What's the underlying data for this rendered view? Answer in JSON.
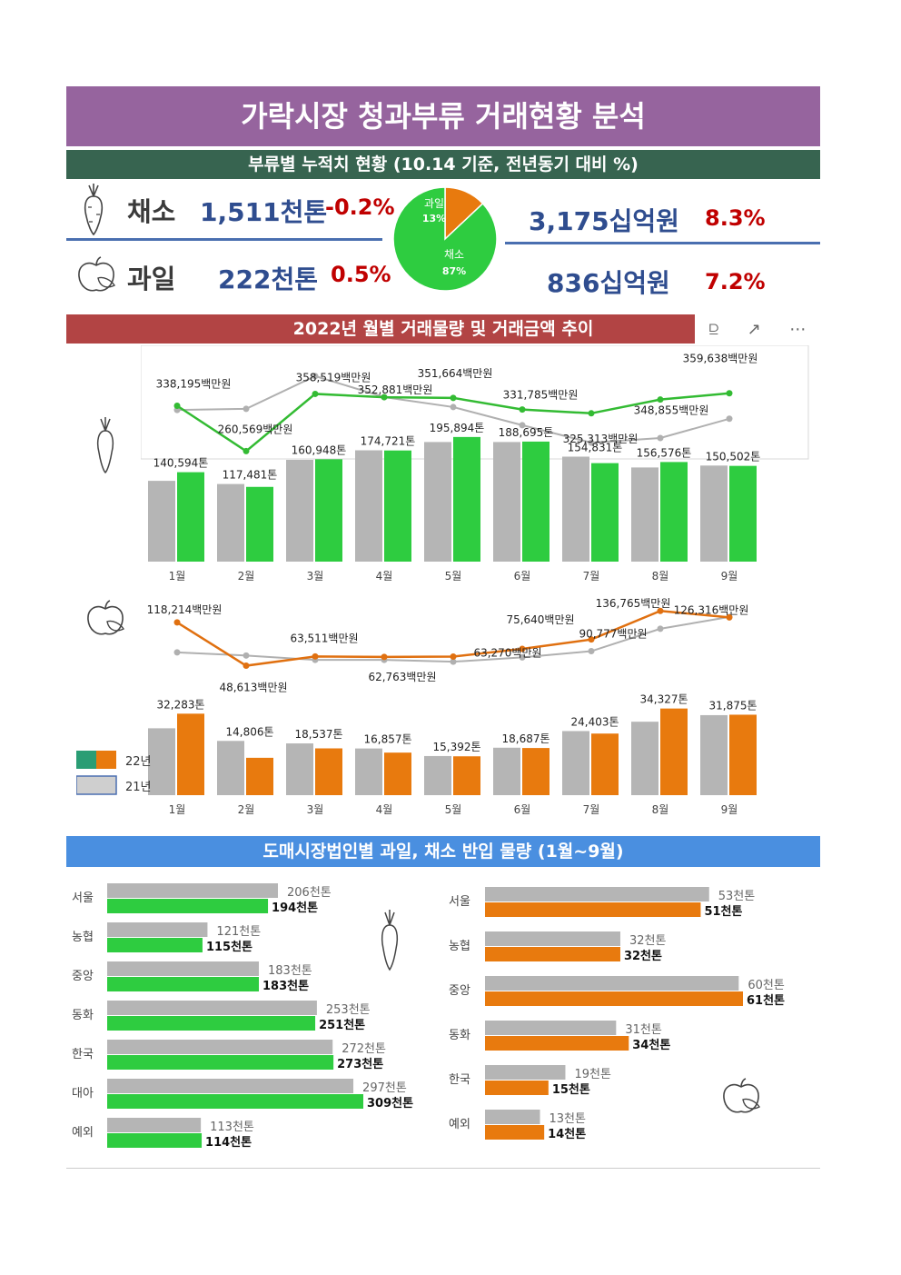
{
  "title": "가락시장 청과부류 거래현황 분석",
  "section1_title": "부류별 누적치 현황 (10.14 기준, 전년동기 대비 %)",
  "section2_title": "2022년 월별 거래물량 및 거래금액  추이",
  "section3_title": "도매시장법인별 과일, 채소 반입 물량 (1월~9월)",
  "toolbar": {
    "filter_icon": "filter-icon",
    "focus_icon": "focus-mode-icon",
    "more_icon": "more-options-icon"
  },
  "kpi": {
    "veg_label": "채소",
    "veg_volume": "1,511천톤",
    "veg_volume_pct": "-0.2%",
    "veg_amount": "3,175십억원",
    "veg_amount_pct": "8.3%",
    "fruit_label": "과일",
    "fruit_volume": "222천톤",
    "fruit_volume_pct": "0.5%",
    "fruit_amount": "836십억원",
    "fruit_amount_pct": "7.2%"
  },
  "colors": {
    "veg": "#2ecc40",
    "fruit": "#e87a0e",
    "prev": "#b8b8b8",
    "veg_line": "#33bb33",
    "fruit_line": "#e07010"
  },
  "chart_data": [
    {
      "type": "pie",
      "categories": [
        "과일",
        "채소"
      ],
      "values": [
        13,
        87
      ],
      "labels": [
        "13%",
        "87%"
      ]
    },
    {
      "type": "line",
      "categories": [
        "1월",
        "2월",
        "3월",
        "4월",
        "5월",
        "6월",
        "7월",
        "8월",
        "9월"
      ],
      "series": [
        {
          "name": "22년",
          "values": [
            338195,
            260569,
            358519,
            352881,
            351664,
            331785,
            325313,
            348855,
            359638
          ]
        },
        {
          "name": "21년",
          "values": [
            331000,
            333000,
            389000,
            353000,
            336000,
            305000,
            275000,
            283000,
            316000
          ]
        }
      ],
      "data_labels": [
        "338,195백만원",
        "260,569백만원",
        "358,519백만원",
        "352,881백만원",
        "351,664백만원",
        "331,785백만원",
        "325,313백만원",
        "348,855백만원",
        "359,638백만원"
      ]
    },
    {
      "type": "bar",
      "categories": [
        "1월",
        "2월",
        "3월",
        "4월",
        "5월",
        "6월",
        "7월",
        "8월",
        "9월"
      ],
      "series": [
        {
          "name": "21년",
          "values": [
            127000,
            122000,
            160000,
            175000,
            188000,
            188000,
            165000,
            148000,
            151000
          ]
        },
        {
          "name": "22년",
          "values": [
            140594,
            117481,
            160948,
            174721,
            195894,
            188695,
            154831,
            156576,
            150502
          ]
        }
      ],
      "data_labels": [
        "140,594톤",
        "117,481톤",
        "160,948톤",
        "174,721톤",
        "195,894톤",
        "188,695톤",
        "154,831톤",
        "156,576톤",
        "150,502톤"
      ]
    },
    {
      "type": "line",
      "categories": [
        "1월",
        "2월",
        "3월",
        "4월",
        "5월",
        "6월",
        "7월",
        "8월",
        "9월"
      ],
      "series": [
        {
          "name": "22년",
          "values": [
            118214,
            48613,
            63511,
            62763,
            63270,
            75640,
            90777,
            136765,
            126316
          ]
        },
        {
          "name": "21년",
          "values": [
            70000,
            65000,
            58000,
            58000,
            55000,
            62000,
            72000,
            108000,
            127000
          ]
        }
      ],
      "data_labels": [
        "118,214백만원",
        "48,613백만원",
        "63,511백만원",
        "62,763백만원",
        "63,270백만원",
        "75,640백만원",
        "90,777백만원",
        "136,765백만원",
        "126,316백만원"
      ]
    },
    {
      "type": "bar",
      "categories": [
        "1월",
        "2월",
        "3월",
        "4월",
        "5월",
        "6월",
        "7월",
        "8월",
        "9월"
      ],
      "series": [
        {
          "name": "21년",
          "values": [
            26500,
            21500,
            20500,
            18500,
            15500,
            18800,
            25400,
            29100,
            31700
          ]
        },
        {
          "name": "22년",
          "values": [
            32283,
            14806,
            18537,
            16857,
            15392,
            18687,
            24403,
            34327,
            31875
          ]
        }
      ],
      "data_labels": [
        "32,283톤",
        "14,806톤",
        "18,537톤",
        "16,857톤",
        "15,392톤",
        "18,687톤",
        "24,403톤",
        "34,327톤",
        "31,875톤"
      ],
      "legend": [
        "22년",
        "21년"
      ]
    },
    {
      "type": "bar",
      "orientation": "horizontal",
      "categories": [
        "서울",
        "농협",
        "중앙",
        "동화",
        "한국",
        "대아",
        "예외"
      ],
      "series": [
        {
          "name": "21년",
          "values": [
            206,
            121,
            183,
            253,
            272,
            297,
            113
          ],
          "labels": [
            "206천톤",
            "121천톤",
            "183천톤",
            "253천톤",
            "272천톤",
            "297천톤",
            "113천톤"
          ]
        },
        {
          "name": "22년",
          "values": [
            194,
            115,
            183,
            251,
            273,
            309,
            114
          ],
          "labels": [
            "194천톤",
            "115천톤",
            "183천톤",
            "251천톤",
            "273천톤",
            "309천톤",
            "114천톤"
          ]
        }
      ]
    },
    {
      "type": "bar",
      "orientation": "horizontal",
      "categories": [
        "서울",
        "농협",
        "중앙",
        "동화",
        "한국",
        "예외"
      ],
      "series": [
        {
          "name": "21년",
          "values": [
            53,
            32,
            60,
            31,
            19,
            13
          ],
          "labels": [
            "53천톤",
            "32천톤",
            "60천톤",
            "31천톤",
            "19천톤",
            "13천톤"
          ]
        },
        {
          "name": "22년",
          "values": [
            51,
            32,
            61,
            34,
            15,
            14
          ],
          "labels": [
            "51천톤",
            "32천톤",
            "61천톤",
            "34천톤",
            "15천톤",
            "14천톤"
          ]
        }
      ]
    }
  ]
}
